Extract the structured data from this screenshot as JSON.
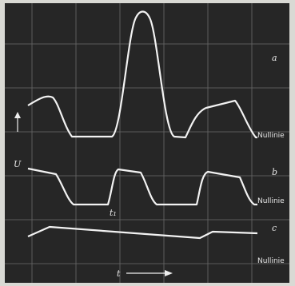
{
  "traces": [
    {
      "label": "a",
      "baseline": "Nullinie"
    },
    {
      "label": "b",
      "baseline": "Nullinie"
    },
    {
      "label": "c",
      "baseline": "Nullinie"
    }
  ],
  "axes": {
    "y": "U",
    "x": "t"
  },
  "marker": "t₁"
}
